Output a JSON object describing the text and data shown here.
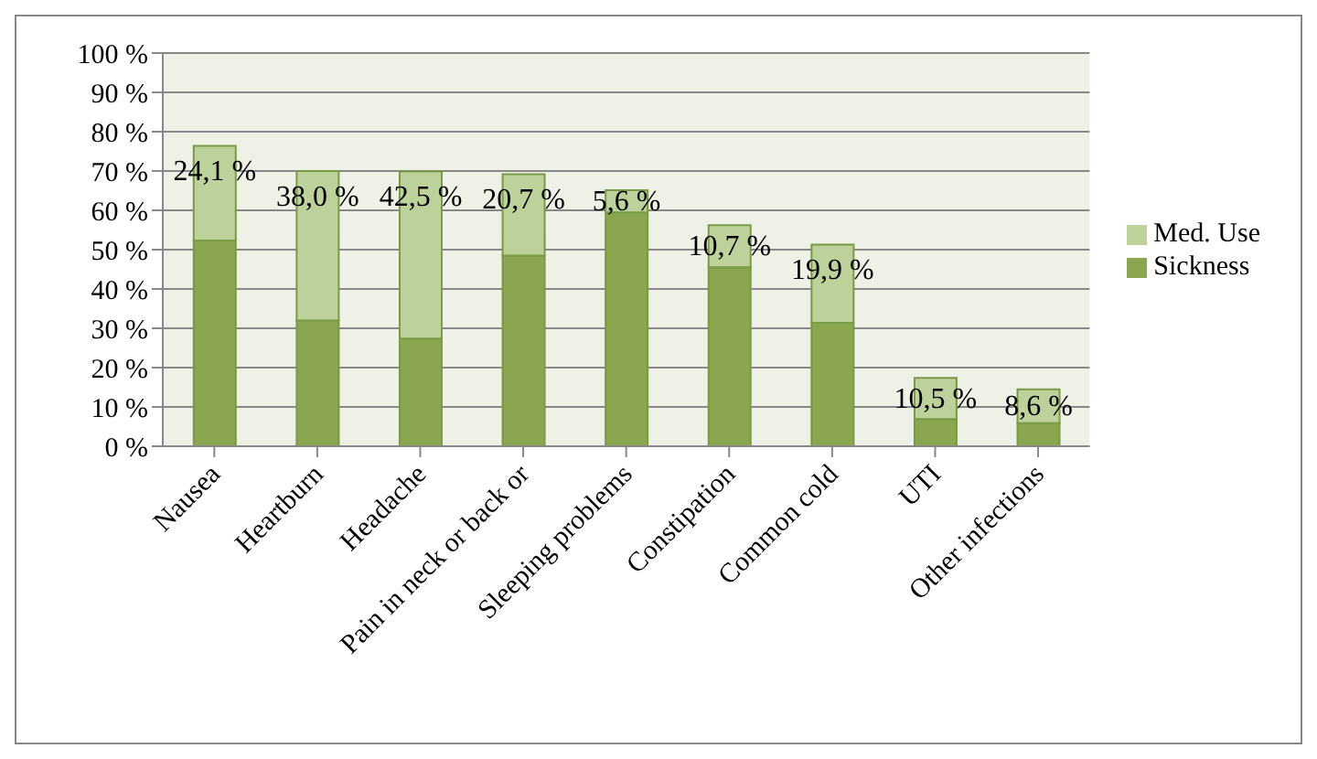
{
  "chart_data": {
    "type": "bar",
    "stacked": true,
    "categories": [
      "Nausea",
      "Heartburn",
      "Headache",
      "Pain in neck or back or",
      "Sleeping problems",
      "Constipation",
      "Common cold",
      "UTI",
      "Other infections"
    ],
    "series": [
      {
        "name": "Sickness",
        "color": "#8aa64e",
        "values": [
          52.3,
          32.0,
          27.4,
          48.5,
          59.5,
          45.5,
          31.4,
          6.9,
          5.9
        ]
      },
      {
        "name": "Med. Use",
        "color": "#bcd29a",
        "values": [
          24.1,
          38.0,
          42.5,
          20.7,
          5.6,
          10.7,
          19.9,
          10.5,
          8.6
        ],
        "value_labels": [
          "24,1 %",
          "38,0 %",
          "42,5 %",
          "20,7 %",
          "5,6 %",
          "10,7 %",
          "19,9 %",
          "10,5 %",
          "8,6 %"
        ]
      }
    ],
    "ylim": [
      0,
      100
    ],
    "yticks": [
      {
        "value": 0,
        "label": "0 %"
      },
      {
        "value": 10,
        "label": "10 %"
      },
      {
        "value": 20,
        "label": "20 %"
      },
      {
        "value": 30,
        "label": "30 %"
      },
      {
        "value": 40,
        "label": "40 %"
      },
      {
        "value": 50,
        "label": "50 %"
      },
      {
        "value": 60,
        "label": "60 %"
      },
      {
        "value": 70,
        "label": "70 %"
      },
      {
        "value": 80,
        "label": "80 %"
      },
      {
        "value": 90,
        "label": "90 %"
      },
      {
        "value": 100,
        "label": "100 %"
      }
    ],
    "grid": "y",
    "legend": "right"
  }
}
